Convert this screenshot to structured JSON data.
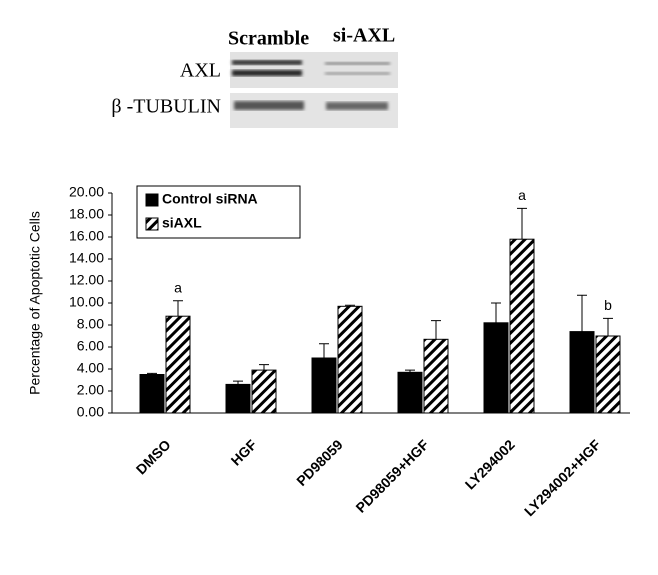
{
  "blot": {
    "columns": [
      "Scramble",
      "si-AXL"
    ],
    "rows": [
      "AXL",
      "β -TUBULIN"
    ]
  },
  "chart_data": {
    "type": "bar",
    "y_label": "Percentage of Apoptotic Cells",
    "categories": [
      "DMSO",
      "HGF",
      "PD98059",
      "PD98059+HGF",
      "LY294002",
      "LY294002+HGF"
    ],
    "series": [
      {
        "name": "Control siRNA",
        "color": "#000000",
        "fill": "solid",
        "values": [
          3.5,
          2.6,
          5.0,
          3.7,
          8.2,
          7.4
        ],
        "errors": [
          0.1,
          0.3,
          1.3,
          0.2,
          1.8,
          3.3
        ]
      },
      {
        "name": "siAXL",
        "color": "#000000",
        "fill": "hatch",
        "values": [
          8.8,
          3.9,
          9.7,
          6.7,
          15.8,
          7.0
        ],
        "errors": [
          1.4,
          0.5,
          0.1,
          1.7,
          2.8,
          1.6
        ],
        "labels": [
          "a",
          null,
          null,
          null,
          "a",
          "b"
        ]
      }
    ],
    "ylim": [
      0,
      20
    ],
    "yticks": [
      {
        "value": 0,
        "label": "0.00"
      },
      {
        "value": 2,
        "label": "2.00"
      },
      {
        "value": 4,
        "label": "4.00"
      },
      {
        "value": 6,
        "label": "6.00"
      },
      {
        "value": 8,
        "label": "8.00"
      },
      {
        "value": 10,
        "label": "10.00"
      },
      {
        "value": 12,
        "label": "12.00"
      },
      {
        "value": 14,
        "label": "14.00"
      },
      {
        "value": 16,
        "label": "16.00"
      },
      {
        "value": 18,
        "label": "18.00"
      },
      {
        "value": 20,
        "label": "20.00"
      }
    ],
    "legend": "upper-left"
  }
}
